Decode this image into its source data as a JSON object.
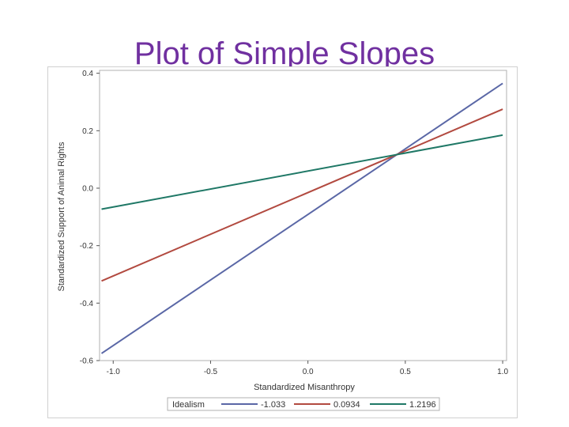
{
  "slide": {
    "title": "Plot of Simple Slopes"
  },
  "chart_data": {
    "type": "line",
    "title": "",
    "xlabel": "Standardized Misanthropy",
    "ylabel": "Standardized Support of Animal Rights",
    "xlim": [
      -1.07,
      1.02
    ],
    "ylim": [
      -0.6,
      0.41
    ],
    "xticks": [
      -1.0,
      -0.5,
      0.0,
      0.5,
      1.0
    ],
    "xtick_labels": [
      "-1.0",
      "-0.5",
      "0.0",
      "0.5",
      "1.0"
    ],
    "yticks": [
      -0.6,
      -0.4,
      -0.2,
      0.0,
      0.2,
      0.4
    ],
    "ytick_labels": [
      "-0.6",
      "-0.4",
      "-0.2",
      "0.0",
      "0.2",
      "0.4"
    ],
    "grid": false,
    "legend": {
      "title": "Idealism",
      "placement": "bottom"
    },
    "series": [
      {
        "name": "-1.033",
        "color": "#5a67a6",
        "x": [
          -1.06,
          1.0
        ],
        "y": [
          -0.575,
          0.365
        ]
      },
      {
        "name": "0.0934",
        "color": "#b24a40",
        "x": [
          -1.06,
          1.0
        ],
        "y": [
          -0.323,
          0.275
        ]
      },
      {
        "name": "1.2196",
        "color": "#1f7866",
        "x": [
          -1.06,
          1.0
        ],
        "y": [
          -0.073,
          0.185
        ]
      }
    ]
  }
}
